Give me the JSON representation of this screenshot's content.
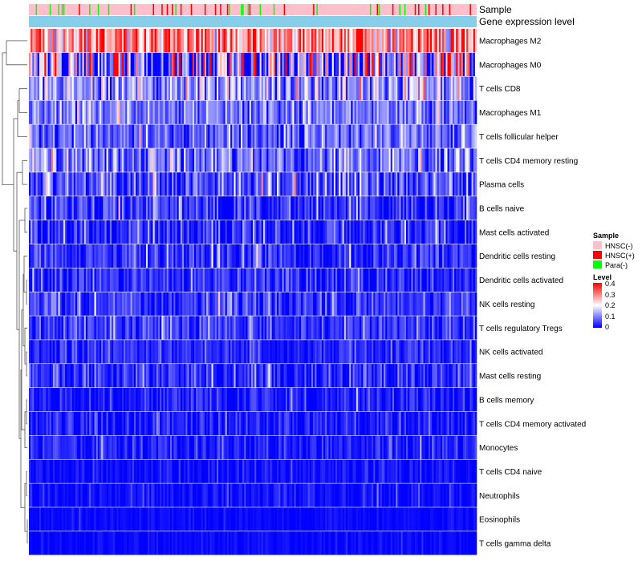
{
  "chart_data": {
    "type": "heatmap",
    "title": "",
    "annotations": [
      {
        "name": "Sample",
        "kind": "categorical"
      },
      {
        "name": "Gene expression level",
        "kind": "continuous"
      }
    ],
    "rows": [
      {
        "label": "Macrophages M2",
        "mean": 0.28,
        "spread": 0.09
      },
      {
        "label": "Macrophages M0",
        "mean": 0.12,
        "spread": 0.16
      },
      {
        "label": "T cells CD8",
        "mean": 0.12,
        "spread": 0.07
      },
      {
        "label": "Macrophages M1",
        "mean": 0.09,
        "spread": 0.05
      },
      {
        "label": "T cells follicular helper",
        "mean": 0.08,
        "spread": 0.05
      },
      {
        "label": "T cells CD4 memory resting",
        "mean": 0.09,
        "spread": 0.07
      },
      {
        "label": "Plasma cells",
        "mean": 0.06,
        "spread": 0.06
      },
      {
        "label": "B cells naive",
        "mean": 0.04,
        "spread": 0.05
      },
      {
        "label": "Mast cells activated",
        "mean": 0.03,
        "spread": 0.05
      },
      {
        "label": "Dendritic cells resting",
        "mean": 0.04,
        "spread": 0.04
      },
      {
        "label": "Dendritic cells activated",
        "mean": 0.03,
        "spread": 0.04
      },
      {
        "label": "NK cells resting",
        "mean": 0.04,
        "spread": 0.04
      },
      {
        "label": "T cells regulatory  Tregs",
        "mean": 0.04,
        "spread": 0.04
      },
      {
        "label": "NK cells activated",
        "mean": 0.03,
        "spread": 0.03
      },
      {
        "label": "Mast cells resting",
        "mean": 0.03,
        "spread": 0.04
      },
      {
        "label": "B cells memory",
        "mean": 0.02,
        "spread": 0.03
      },
      {
        "label": "T cells CD4 memory activated",
        "mean": 0.02,
        "spread": 0.03
      },
      {
        "label": "Monocytes",
        "mean": 0.02,
        "spread": 0.03
      },
      {
        "label": "T cells CD4 naive",
        "mean": 0.01,
        "spread": 0.02
      },
      {
        "label": "Neutrophils",
        "mean": 0.01,
        "spread": 0.02
      },
      {
        "label": "Eosinophils",
        "mean": 0.005,
        "spread": 0.01
      },
      {
        "label": "T cells gamma delta",
        "mean": 0.005,
        "spread": 0.01
      }
    ],
    "n_samples": 260,
    "sample_groups": [
      {
        "name": "HNSC(-)",
        "color": "#FFC0CB",
        "share": 0.82
      },
      {
        "name": "HNSC(+)",
        "color": "#FF0000",
        "share": 0.09
      },
      {
        "name": "Para(-)",
        "color": "#00FF00",
        "share": 0.09
      }
    ],
    "gene_expression_color": "#87CEEB",
    "color_scale": {
      "min": 0,
      "max": 0.4,
      "stops": [
        {
          "value": 0,
          "color": "#0000FF"
        },
        {
          "value": 0.2,
          "color": "#FFFFFF"
        },
        {
          "value": 0.4,
          "color": "#FF0000"
        }
      ]
    },
    "legend": {
      "sample_title": "Sample",
      "level_title": "Level",
      "level_ticks": [
        "0.4",
        "0.3",
        "0.2",
        "0.1",
        "0"
      ],
      "position": "right"
    }
  }
}
